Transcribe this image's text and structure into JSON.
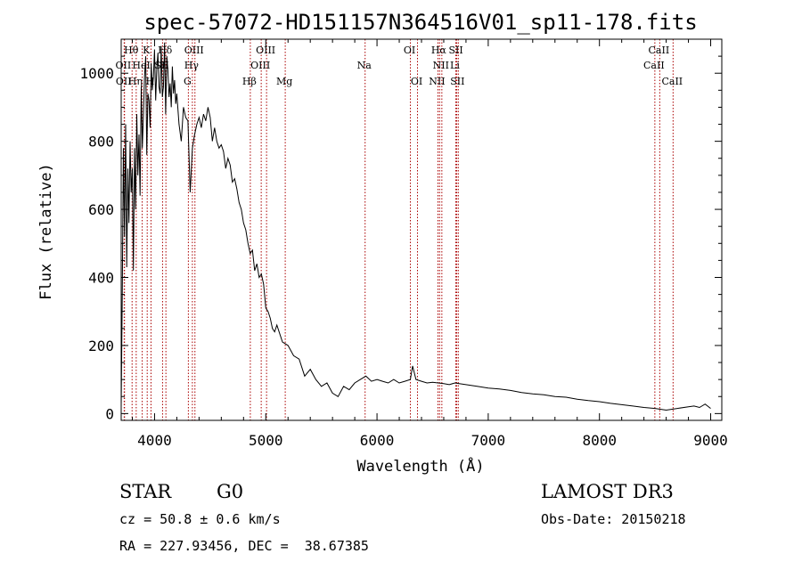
{
  "chart_data": {
    "type": "line",
    "title": "spec-57072-HD151157N364516V01_sp11-178.fits",
    "xlabel": "Wavelength (Å)",
    "ylabel": "Flux (relative)",
    "xlim": [
      3700,
      9100
    ],
    "ylim": [
      -20,
      1100
    ],
    "xticks": [
      4000,
      5000,
      6000,
      7000,
      8000,
      9000
    ],
    "yticks": [
      0,
      200,
      400,
      600,
      800,
      1000
    ],
    "line_color": "#000000",
    "marker_color": "#aa0000",
    "series": [
      {
        "x": [
          3700,
          3710,
          3720,
          3730,
          3740,
          3750,
          3760,
          3770,
          3780,
          3790,
          3800,
          3810,
          3820,
          3830,
          3840,
          3850,
          3860,
          3870,
          3880,
          3890,
          3900,
          3910,
          3920,
          3930,
          3940,
          3950,
          3960,
          3970,
          3980,
          3990,
          4000,
          4010,
          4020,
          4030,
          4040,
          4050,
          4060,
          4070,
          4080,
          4090,
          4100,
          4110,
          4120,
          4130,
          4140,
          4150,
          4160,
          4170,
          4180,
          4190,
          4200,
          4220,
          4240,
          4260,
          4280,
          4300,
          4320,
          4340,
          4360,
          4380,
          4400,
          4420,
          4440,
          4460,
          4480,
          4500,
          4520,
          4540,
          4560,
          4580,
          4600,
          4620,
          4640,
          4660,
          4680,
          4700,
          4720,
          4740,
          4760,
          4780,
          4800,
          4820,
          4840,
          4860,
          4880,
          4900,
          4920,
          4940,
          4960,
          4980,
          5000,
          5020,
          5040,
          5060,
          5080,
          5100,
          5150,
          5200,
          5250,
          5300,
          5350,
          5400,
          5450,
          5500,
          5550,
          5600,
          5650,
          5700,
          5750,
          5800,
          5850,
          5900,
          5950,
          6000,
          6050,
          6100,
          6150,
          6200,
          6250,
          6300,
          6320,
          6350,
          6400,
          6450,
          6500,
          6550,
          6600,
          6650,
          6700,
          6800,
          6900,
          7000,
          7100,
          7200,
          7300,
          7400,
          7500,
          7600,
          7700,
          7800,
          7900,
          8000,
          8100,
          8200,
          8300,
          8400,
          8500,
          8600,
          8700,
          8800,
          8850,
          8900,
          8950,
          9000
        ],
        "y": [
          20,
          350,
          780,
          520,
          850,
          430,
          720,
          560,
          800,
          650,
          720,
          420,
          780,
          600,
          880,
          700,
          820,
          640,
          960,
          780,
          880,
          990,
          1050,
          760,
          940,
          920,
          840,
          1030,
          950,
          990,
          1070,
          920,
          1010,
          1060,
          960,
          940,
          1080,
          930,
          960,
          1090,
          880,
          1050,
          1010,
          930,
          970,
          900,
          1020,
          940,
          980,
          910,
          940,
          850,
          800,
          900,
          870,
          860,
          650,
          780,
          820,
          850,
          870,
          840,
          880,
          860,
          900,
          870,
          800,
          840,
          800,
          780,
          790,
          770,
          720,
          750,
          730,
          680,
          690,
          660,
          620,
          600,
          560,
          540,
          500,
          470,
          480,
          420,
          440,
          400,
          410,
          380,
          310,
          300,
          280,
          250,
          240,
          260,
          210,
          200,
          170,
          160,
          110,
          130,
          100,
          80,
          90,
          60,
          50,
          80,
          70,
          90,
          100,
          110,
          95,
          100,
          95,
          90,
          100,
          90,
          95,
          100,
          140,
          100,
          95,
          90,
          92,
          90,
          88,
          85,
          90,
          85,
          80,
          75,
          72,
          68,
          62,
          58,
          55,
          50,
          48,
          42,
          38,
          35,
          30,
          26,
          22,
          18,
          15,
          10,
          15,
          20,
          22,
          18,
          28,
          15
        ]
      }
    ],
    "line_markers": [
      {
        "label": "Hθ",
        "x": 3798,
        "row": 0
      },
      {
        "label": "K",
        "x": 3934,
        "row": 0
      },
      {
        "label": "Hδ",
        "x": 4102,
        "row": 0
      },
      {
        "label": "OIII",
        "x": 4363,
        "row": 0
      },
      {
        "label": "OIII",
        "x": 5007,
        "row": 0
      },
      {
        "label": "Na",
        "x": 5893,
        "row": 1
      },
      {
        "label": "OI",
        "x": 6300,
        "row": 0
      },
      {
        "label": "Hα",
        "x": 6563,
        "row": 0
      },
      {
        "label": "SII",
        "x": 6717,
        "row": 0
      },
      {
        "label": "CaII",
        "x": 8542,
        "row": 0
      },
      {
        "label": "OII",
        "x": 3727,
        "row": 1
      },
      {
        "label": "HeI",
        "x": 3889,
        "row": 1
      },
      {
        "label": "SII",
        "x": 4072,
        "row": 1
      },
      {
        "label": "Hγ",
        "x": 4340,
        "row": 1
      },
      {
        "label": "OIII",
        "x": 4959,
        "row": 1
      },
      {
        "label": "NII",
        "x": 6583,
        "row": 1
      },
      {
        "label": "Li",
        "x": 6708,
        "row": 1
      },
      {
        "label": "CaII",
        "x": 8498,
        "row": 1
      },
      {
        "label": "OII",
        "x": 3730,
        "row": 2
      },
      {
        "label": "Hη",
        "x": 3835,
        "row": 2
      },
      {
        "label": "H",
        "x": 3968,
        "row": 2
      },
      {
        "label": "G",
        "x": 4304,
        "row": 2
      },
      {
        "label": "Hβ",
        "x": 4861,
        "row": 2
      },
      {
        "label": "Mg",
        "x": 5175,
        "row": 2
      },
      {
        "label": "OI",
        "x": 6364,
        "row": 2
      },
      {
        "label": "NII",
        "x": 6548,
        "row": 2
      },
      {
        "label": "SII",
        "x": 6731,
        "row": 2
      },
      {
        "label": "CaII",
        "x": 8662,
        "row": 2
      }
    ]
  },
  "info": {
    "class_label": "STAR",
    "subclass": "G0",
    "survey": "LAMOST DR3",
    "cz": "cz = 50.8 ± 0.6 km/s",
    "obs_date": "Obs-Date: 20150218",
    "coords": "RA = 227.93456, DEC =  38.67385"
  }
}
